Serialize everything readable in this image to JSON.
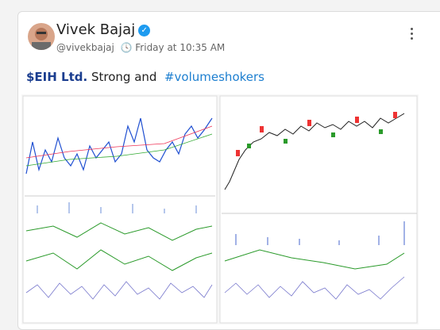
{
  "header": {
    "name": "Vivek Bajaj",
    "handle": "@vivekbajaj",
    "time": "Friday at 10:35 AM"
  },
  "tweet": {
    "ticker": "$EIH Ltd.",
    "text": "Strong and",
    "hashtag": "#volumeshokers"
  }
}
